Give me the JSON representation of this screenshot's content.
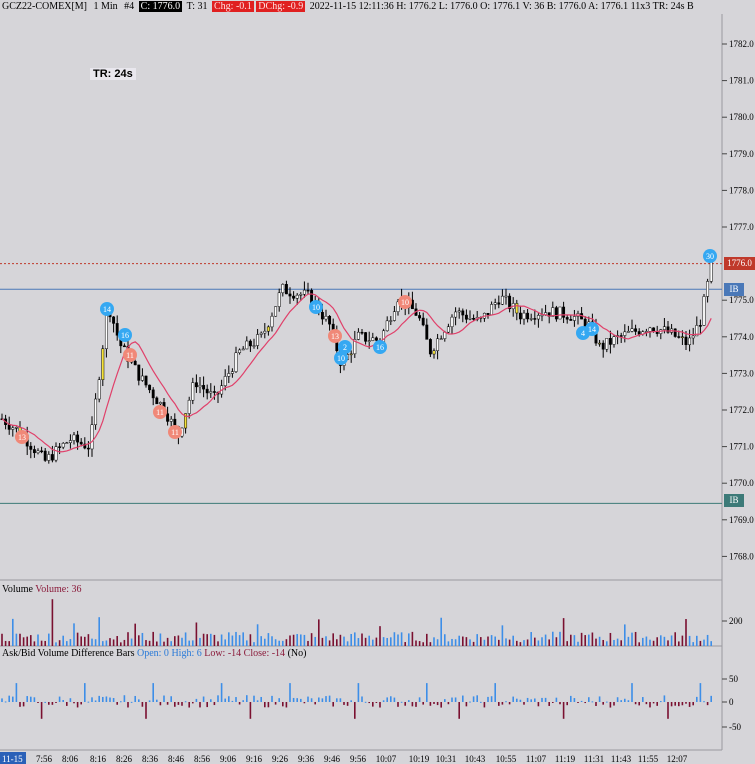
{
  "header": {
    "symbol": "GCZ22-COMEX[M]",
    "interval": "1 Min",
    "index": "#4",
    "close_badge": "C: 1776.0",
    "ticks": "T: 31",
    "chg_badge": "Chg: -0.1",
    "dchg_badge": "DChg: -0.9",
    "stats": "2022-11-15 12:11:36 H: 1776.2 L: 1776.0 O: 1776.1 V: 36 B: 1776.0 A: 1776.1 11x3 TR: 24s B"
  },
  "tr_label": "TR: 24s",
  "price_axis": {
    "ticks": [
      "1782.0",
      "1781.0",
      "1780.0",
      "1779.0",
      "1778.0",
      "1777.0",
      "1775.0",
      "1774.0",
      "1773.0",
      "1772.0",
      "1771.0",
      "1770.0",
      "1769.0",
      "1768.0"
    ],
    "current_price": "1776.0",
    "ib_high_label": "IB",
    "ib_low_label": "IB"
  },
  "volume_pane": {
    "title": "Volume",
    "value_text": "Volume: 36",
    "axis_ticks": [
      "200"
    ]
  },
  "diff_pane": {
    "title": "Ask/Bid Volume Difference Bars",
    "open": "Open: 0",
    "high": "High: 6",
    "low": "Low: -14",
    "close": "Close: -14",
    "flag": "(No)",
    "axis_ticks": [
      "50",
      "0",
      "-50"
    ]
  },
  "time_axis": {
    "labels": [
      "11-15",
      "7:56",
      "8:06",
      "8:16",
      "8:26",
      "8:36",
      "8:46",
      "8:56",
      "9:06",
      "9:16",
      "9:26",
      "9:36",
      "9:46",
      "9:56",
      "10:07",
      "10:19",
      "10:31",
      "10:43",
      "10:55",
      "11:07",
      "11:19",
      "11:31",
      "11:43",
      "11:55",
      "12:07"
    ]
  },
  "markers": {
    "blue": [
      "14",
      "16",
      "10",
      "2",
      "10",
      "16",
      "4",
      "14",
      "30"
    ],
    "red": [
      "13",
      "11",
      "11",
      "11",
      "13",
      "10"
    ]
  },
  "colors": {
    "background": "#d6d5d9",
    "up_candle": "#ffffff",
    "down_candle": "#000000",
    "moving_average": "#e0406a",
    "volume_up": "#3d8ee8",
    "volume_down": "#7a1030",
    "blue_marker": "#35a8f2",
    "red_marker": "#f08878",
    "ib_line": "#4a78b8",
    "ib_low_line": "#3c7a78",
    "price_line": "#c0392b"
  }
}
